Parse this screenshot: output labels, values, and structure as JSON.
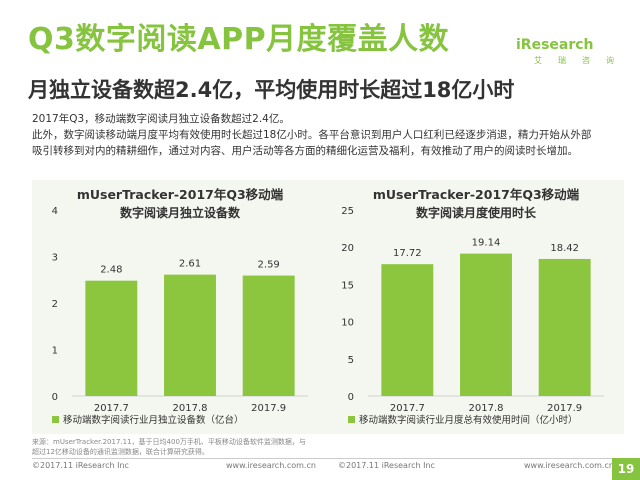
{
  "header": {
    "title": "Q3数字阅读APP月度覆盖人数",
    "subtitle": "月独立设备数超2.4亿，平均使用时长超过18亿小时"
  },
  "logo": {
    "text": "iResearch",
    "sub": [
      "艾",
      "瑞",
      "咨",
      "询"
    ]
  },
  "description": [
    "2017年Q3，移动端数字阅读月独立设备数超过2.4亿。",
    "此外，数字阅读移动端月度平均有效使用时长超过18亿小时。各平台意识到用户人口红利已经逐步消退，精力开始从外部",
    "吸引转移到对内的精耕细作，通过对内容、用户活动等各方面的精细化运营及福利，有效推动了用户的阅读时长增加。"
  ],
  "colors": {
    "accent": "#86c440",
    "bar": "#8cc63f",
    "chart_bg": "#f4f7f0"
  },
  "chart_data": [
    {
      "type": "bar",
      "title": "mUserTracker-2017年Q3移动端",
      "subtitle": "数字阅读月独立设备数",
      "categories": [
        "2017.7",
        "2017.8",
        "2017.9"
      ],
      "values": [
        2.48,
        2.61,
        2.59
      ],
      "value_labels": [
        "2.48",
        "2.61",
        "2.59"
      ],
      "ylim": [
        0,
        4
      ],
      "yticks": [
        0,
        1,
        2,
        3,
        4
      ],
      "legend": "移动端数字阅读行业月独立设备数（亿台）",
      "legend_position": "bottom",
      "grid": false
    },
    {
      "type": "bar",
      "title": "mUserTracker-2017年Q3移动端",
      "subtitle": "数字阅读月度使用时长",
      "categories": [
        "2017.7",
        "2017.8",
        "2017.9"
      ],
      "values": [
        17.72,
        19.14,
        18.42
      ],
      "value_labels": [
        "17.72",
        "19.14",
        "18.42"
      ],
      "ylim": [
        0,
        25
      ],
      "yticks": [
        0,
        5,
        10,
        15,
        20,
        25
      ],
      "legend": "移动端数字阅读行业月度总有效使用时间（亿小时）",
      "legend_position": "bottom",
      "grid": false
    }
  ],
  "sources": [
    {
      "line1": "来源：mUserTracker.2017.11，基于日均400万手机、平板移动设备软件监测数据，与",
      "line2": "超过12亿移动设备的通讯监测数据，联合计算研究获得。"
    },
    {
      "line1": "来源：mUserTracker.2017.11，基于日均400万手机、平板移动设备软件监测数据，与",
      "line2": "超过12亿移动设备的通讯监测数据，联合计算研究获得。"
    }
  ],
  "footer": {
    "copyright": "©2017.11 iResearch Inc",
    "url": "www.iresearch.com.cn",
    "copyright2": "©2017.11 iResearch Inc",
    "url2": "www.iresearch.com.cn",
    "page": "19"
  }
}
